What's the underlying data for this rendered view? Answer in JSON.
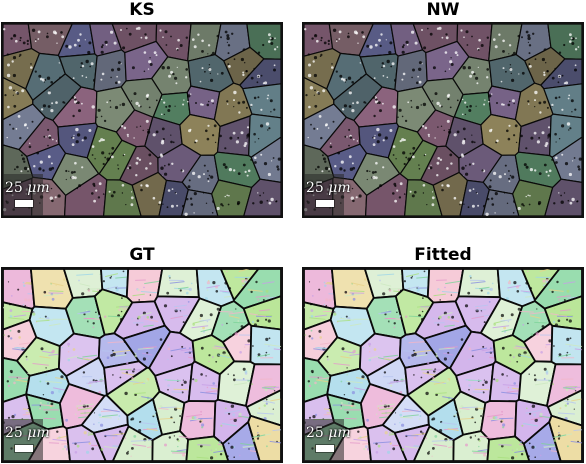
{
  "panels": [
    {
      "id": "ks",
      "title": "KS",
      "scale_number": "25",
      "scale_unit": "μm",
      "style": "dark",
      "seed": 11
    },
    {
      "id": "nw",
      "title": "NW",
      "scale_number": "25",
      "scale_unit": "μm",
      "style": "dark",
      "seed": 11
    },
    {
      "id": "gt",
      "title": "GT",
      "scale_number": "25",
      "scale_unit": "μm",
      "style": "light",
      "seed": 29
    },
    {
      "id": "fitted",
      "title": "Fitted",
      "scale_number": "25",
      "scale_unit": "μm",
      "style": "light",
      "seed": 29
    }
  ],
  "colors": {
    "grain_palette": [
      "#7fd49a",
      "#a9e07f",
      "#c7a0e6",
      "#8a8fe0",
      "#e59acb",
      "#9fd6e8",
      "#e8d38a",
      "#f2b6c9",
      "#b8c6f0",
      "#cde9c1"
    ],
    "boundary": "#0a0a0a",
    "dark_background": "#2a2a2a",
    "light_background": "#eef0f2"
  }
}
